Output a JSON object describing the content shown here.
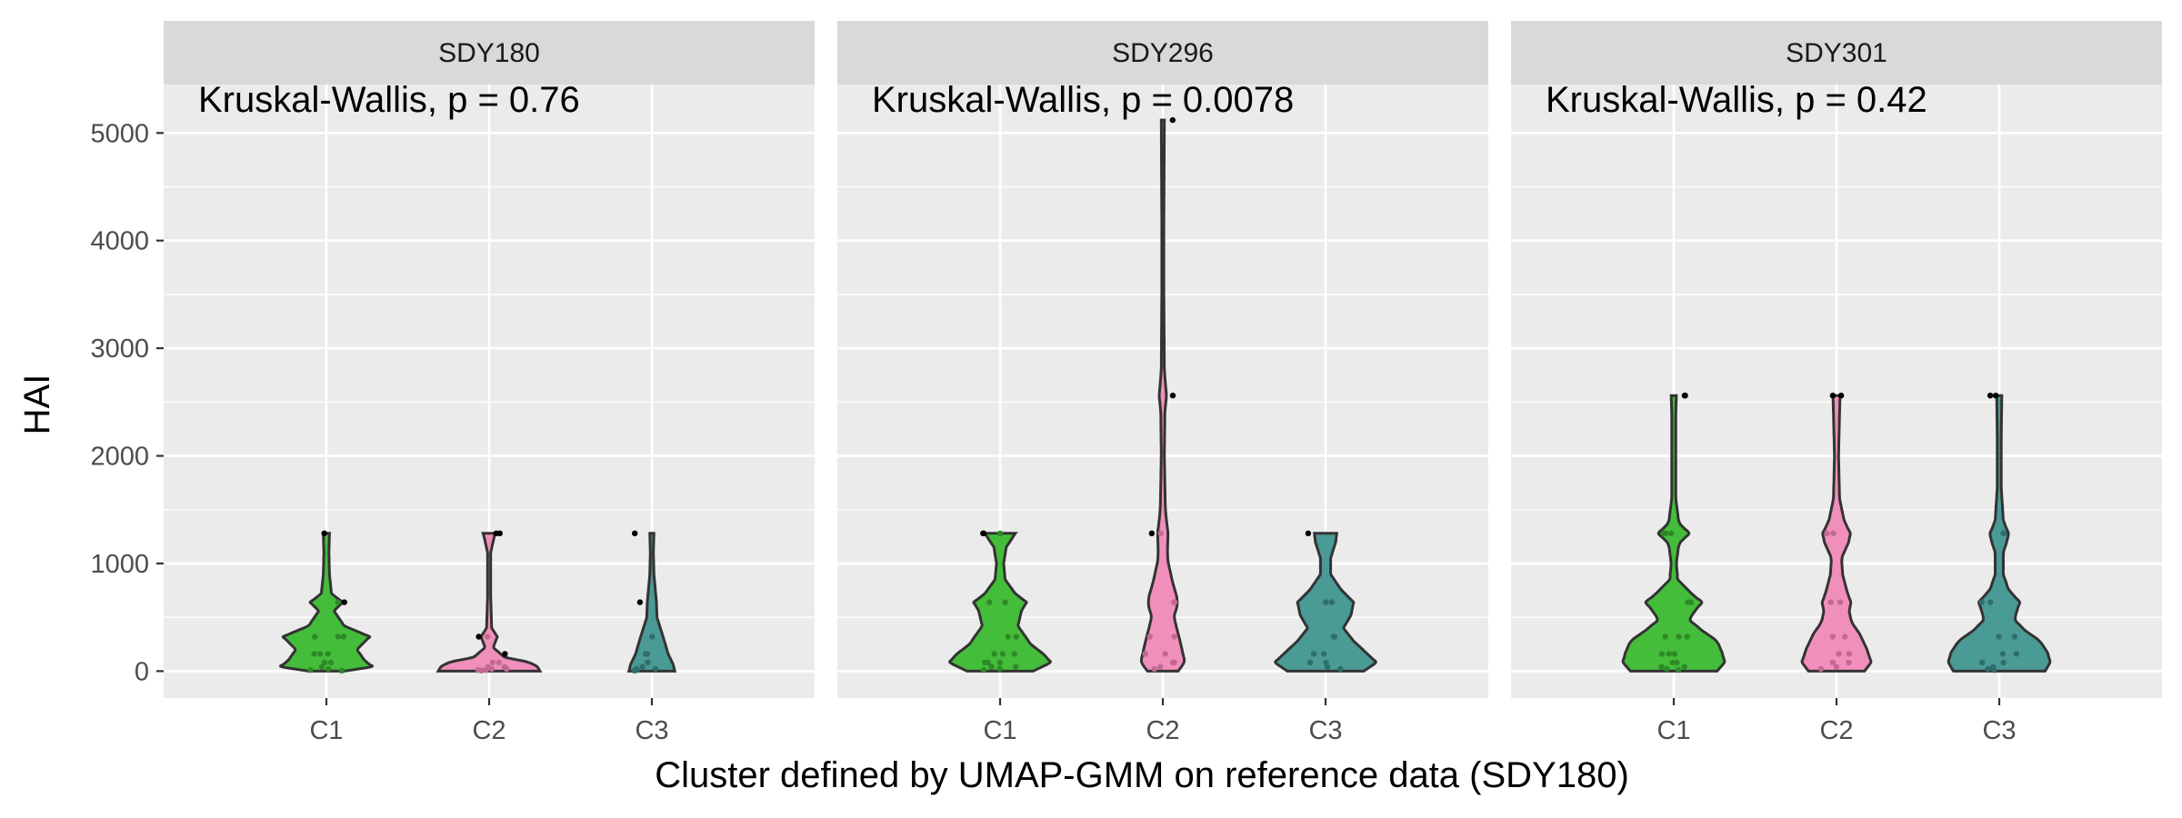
{
  "chart_data": {
    "type": "violin",
    "xlabel": "Cluster defined by UMAP-GMM on reference data (SDY180)",
    "ylabel": "HAI",
    "ylim": [
      -250,
      5450
    ],
    "yticks": [
      0,
      1000,
      2000,
      3000,
      4000,
      5000
    ],
    "categories": [
      "C1",
      "C2",
      "C3"
    ],
    "grid": true,
    "legend": "none",
    "colors": {
      "C1": "#44BD3A",
      "C2": "#F18FBB",
      "C3": "#4A9A96"
    },
    "panels": [
      {
        "facet": "SDY180",
        "annotation": "Kruskal-Wallis, p = 0.76",
        "groups": [
          {
            "cluster": "C1",
            "values": [
              5,
              10,
              20,
              40,
              80,
              80,
              160,
              160,
              160,
              320,
              320,
              320,
              640,
              640,
              1280
            ],
            "violin": [
              [
                0,
                0.35
              ],
              [
                40,
                0.9
              ],
              [
                100,
                0.75
              ],
              [
                200,
                0.6
              ],
              [
                320,
                0.85
              ],
              [
                420,
                0.35
              ],
              [
                560,
                0.15
              ],
              [
                640,
                0.32
              ],
              [
                720,
                0.1
              ],
              [
                900,
                0.06
              ],
              [
                1100,
                0.05
              ],
              [
                1280,
                0.06
              ]
            ]
          },
          {
            "cluster": "C2",
            "values": [
              5,
              10,
              10,
              20,
              20,
              40,
              40,
              80,
              80,
              160,
              320,
              320,
              1280,
              1280
            ],
            "violin": [
              [
                0,
                1.0
              ],
              [
                40,
                0.95
              ],
              [
                80,
                0.8
              ],
              [
                130,
                0.3
              ],
              [
                220,
                0.08
              ],
              [
                320,
                0.16
              ],
              [
                400,
                0.05
              ],
              [
                700,
                0.03
              ],
              [
                1100,
                0.03
              ],
              [
                1250,
                0.1
              ],
              [
                1280,
                0.12
              ]
            ]
          },
          {
            "cluster": "C3",
            "values": [
              5,
              10,
              20,
              20,
              40,
              80,
              160,
              160,
              320,
              640,
              1280
            ],
            "violin": [
              [
                0,
                0.45
              ],
              [
                60,
                0.42
              ],
              [
                160,
                0.32
              ],
              [
                320,
                0.22
              ],
              [
                500,
                0.1
              ],
              [
                640,
                0.09
              ],
              [
                900,
                0.04
              ],
              [
                1100,
                0.03
              ],
              [
                1280,
                0.04
              ]
            ]
          }
        ]
      },
      {
        "facet": "SDY296",
        "annotation": "Kruskal-Wallis, p = 0.0078",
        "groups": [
          {
            "cluster": "C1",
            "values": [
              10,
              20,
              40,
              40,
              80,
              80,
              80,
              160,
              160,
              160,
              320,
              320,
              640,
              640,
              1280,
              1280,
              1280
            ],
            "violin": [
              [
                0,
                0.65
              ],
              [
                80,
                1.0
              ],
              [
                160,
                0.85
              ],
              [
                250,
                0.6
              ],
              [
                320,
                0.5
              ],
              [
                420,
                0.35
              ],
              [
                560,
                0.42
              ],
              [
                640,
                0.52
              ],
              [
                720,
                0.3
              ],
              [
                850,
                0.1
              ],
              [
                1000,
                0.07
              ],
              [
                1150,
                0.12
              ],
              [
                1280,
                0.3
              ]
            ]
          },
          {
            "cluster": "C2",
            "values": [
              20,
              40,
              80,
              80,
              160,
              160,
              320,
              320,
              640,
              640,
              1280,
              1280,
              2560,
              5120
            ],
            "violin": [
              [
                0,
                0.3
              ],
              [
                80,
                0.42
              ],
              [
                200,
                0.38
              ],
              [
                350,
                0.3
              ],
              [
                500,
                0.22
              ],
              [
                640,
                0.3
              ],
              [
                850,
                0.18
              ],
              [
                1050,
                0.09
              ],
              [
                1280,
                0.1
              ],
              [
                1500,
                0.05
              ],
              [
                2000,
                0.03
              ],
              [
                2400,
                0.04
              ],
              [
                2560,
                0.07
              ],
              [
                2800,
                0.03
              ],
              [
                3500,
                0.02
              ],
              [
                4200,
                0.02
              ],
              [
                5120,
                0.03
              ]
            ]
          },
          {
            "cluster": "C3",
            "values": [
              20,
              40,
              80,
              80,
              160,
              160,
              320,
              320,
              640,
              640,
              1280
            ],
            "violin": [
              [
                0,
                0.75
              ],
              [
                80,
                1.0
              ],
              [
                170,
                0.8
              ],
              [
                280,
                0.55
              ],
              [
                400,
                0.35
              ],
              [
                520,
                0.5
              ],
              [
                640,
                0.55
              ],
              [
                760,
                0.3
              ],
              [
                900,
                0.1
              ],
              [
                1050,
                0.1
              ],
              [
                1200,
                0.2
              ],
              [
                1280,
                0.22
              ]
            ]
          }
        ]
      },
      {
        "facet": "SDY301",
        "annotation": "Kruskal-Wallis, p = 0.42",
        "groups": [
          {
            "cluster": "C1",
            "values": [
              10,
              20,
              40,
              40,
              80,
              80,
              160,
              160,
              160,
              320,
              320,
              320,
              640,
              640,
              1280,
              1280,
              1280,
              2560,
              2560
            ],
            "violin": [
              [
                0,
                0.85
              ],
              [
                80,
                1.0
              ],
              [
                170,
                0.95
              ],
              [
                280,
                0.85
              ],
              [
                380,
                0.55
              ],
              [
                480,
                0.3
              ],
              [
                580,
                0.45
              ],
              [
                640,
                0.55
              ],
              [
                720,
                0.35
              ],
              [
                850,
                0.08
              ],
              [
                1000,
                0.05
              ],
              [
                1180,
                0.1
              ],
              [
                1280,
                0.3
              ],
              [
                1380,
                0.1
              ],
              [
                1600,
                0.04
              ],
              [
                2000,
                0.04
              ],
              [
                2400,
                0.04
              ],
              [
                2560,
                0.05
              ]
            ]
          },
          {
            "cluster": "C2",
            "values": [
              20,
              40,
              80,
              80,
              160,
              160,
              320,
              320,
              640,
              640,
              1280,
              1280,
              2560,
              2560
            ],
            "violin": [
              [
                0,
                0.55
              ],
              [
                80,
                0.68
              ],
              [
                200,
                0.6
              ],
              [
                350,
                0.45
              ],
              [
                450,
                0.3
              ],
              [
                550,
                0.25
              ],
              [
                640,
                0.28
              ],
              [
                750,
                0.2
              ],
              [
                900,
                0.12
              ],
              [
                1050,
                0.1
              ],
              [
                1200,
                0.24
              ],
              [
                1280,
                0.27
              ],
              [
                1400,
                0.15
              ],
              [
                1600,
                0.06
              ],
              [
                2000,
                0.04
              ],
              [
                2400,
                0.06
              ],
              [
                2560,
                0.07
              ]
            ]
          },
          {
            "cluster": "C3",
            "values": [
              10,
              20,
              40,
              80,
              80,
              160,
              160,
              320,
              320,
              640,
              640,
              1280,
              1280,
              2560,
              2560
            ],
            "violin": [
              [
                0,
                0.9
              ],
              [
                80,
                1.0
              ],
              [
                170,
                0.95
              ],
              [
                280,
                0.8
              ],
              [
                380,
                0.5
              ],
              [
                480,
                0.3
              ],
              [
                580,
                0.36
              ],
              [
                640,
                0.4
              ],
              [
                760,
                0.18
              ],
              [
                900,
                0.08
              ],
              [
                1100,
                0.08
              ],
              [
                1220,
                0.16
              ],
              [
                1280,
                0.18
              ],
              [
                1400,
                0.08
              ],
              [
                1700,
                0.04
              ],
              [
                2200,
                0.04
              ],
              [
                2560,
                0.05
              ]
            ]
          }
        ]
      }
    ]
  }
}
